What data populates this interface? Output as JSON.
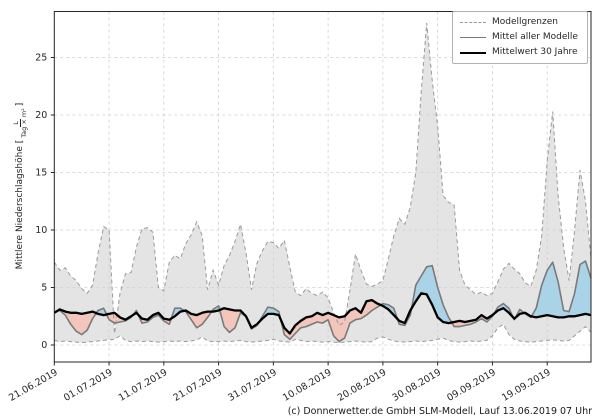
{
  "chart_data": {
    "type": "area",
    "title": "",
    "grid": true,
    "legend_position": "top-right",
    "x": {
      "tick_labels": [
        "21.06.2019",
        "01.07.2019",
        "11.07.2019",
        "21.07.2019",
        "31.07.2019",
        "10.08.2019",
        "20.08.2019",
        "30.08.2019",
        "09.09.2019",
        "19.09.2019"
      ],
      "tick_days": [
        0,
        10,
        20,
        30,
        40,
        50,
        60,
        70,
        80,
        90
      ],
      "total_days": 98
    },
    "y": {
      "label_prefix": "Mittlere Niederschlagshöhe [",
      "unit_numerator": "L",
      "unit_denominator": "Tag × m²",
      "label_suffix": "]",
      "ticks": [
        0,
        5,
        10,
        15,
        20,
        25
      ],
      "lim": [
        -1.5,
        29
      ]
    },
    "legend_items": [
      {
        "label": "Modellgrenzen",
        "line": "dashed-gray"
      },
      {
        "label": "Mittel aller Modelle",
        "line": "solid-gray"
      },
      {
        "label": "Mittelwert 30 Jahre",
        "line": "solid-black"
      }
    ],
    "series": [
      {
        "name": "Modellgrenzen obere Grenze",
        "values": [
          7.2,
          6.5,
          6.7,
          6.0,
          5.6,
          4.9,
          4.5,
          5.2,
          8.0,
          10.3,
          10.0,
          1.0,
          4.5,
          6.2,
          6.3,
          8.5,
          10.1,
          10.2,
          9.8,
          5.0,
          4.7,
          7.2,
          7.8,
          7.5,
          8.8,
          9.6,
          10.7,
          9.5,
          4.8,
          6.5,
          5.2,
          6.9,
          7.8,
          9.0,
          10.5,
          8.0,
          4.8,
          7.1,
          8.2,
          9.0,
          8.9,
          8.4,
          9.1,
          6.8,
          4.6,
          4.3,
          4.9,
          4.5,
          4.3,
          4.6,
          4.1,
          2.8,
          1.7,
          2.0,
          4.8,
          7.9,
          6.5,
          5.3,
          5.1,
          5.3,
          5.6,
          7.5,
          9.5,
          11.0,
          10.5,
          12.0,
          15.0,
          22.0,
          28.0,
          23.0,
          19.0,
          13.0,
          12.4,
          12.2,
          6.5,
          5.2,
          4.8,
          4.4,
          4.6,
          4.3,
          4.5,
          5.5,
          6.6,
          7.1,
          6.6,
          6.2,
          5.4,
          5.1,
          6.5,
          9.5,
          16.0,
          20.3,
          13.0,
          8.5,
          5.6,
          10.0,
          15.2,
          12.5,
          7.5
        ]
      },
      {
        "name": "Modellgrenzen untere Grenze",
        "values": [
          0.4,
          0.3,
          0.35,
          0.3,
          0.25,
          0.2,
          0.25,
          0.3,
          0.35,
          0.4,
          0.45,
          0.5,
          0.8,
          0.4,
          0.3,
          0.35,
          0.3,
          0.35,
          0.3,
          0.25,
          0.3,
          0.35,
          0.3,
          0.35,
          0.3,
          0.35,
          0.45,
          0.7,
          0.35,
          0.3,
          0.3,
          0.35,
          0.3,
          0.35,
          0.4,
          0.3,
          0.25,
          0.3,
          0.35,
          0.4,
          0.5,
          0.35,
          0.3,
          0.25,
          0.5,
          0.4,
          0.3,
          0.35,
          0.3,
          0.25,
          0.3,
          0.25,
          0.2,
          0.25,
          0.3,
          0.35,
          0.3,
          0.25,
          0.3,
          0.6,
          0.7,
          0.5,
          0.35,
          0.3,
          0.25,
          0.3,
          0.35,
          0.3,
          0.35,
          0.4,
          0.5,
          0.6,
          0.4,
          0.3,
          0.25,
          0.3,
          0.35,
          0.3,
          0.35,
          0.4,
          0.8,
          1.5,
          1.8,
          0.9,
          0.5,
          0.35,
          0.3,
          0.25,
          0.3,
          0.35,
          0.4,
          0.45,
          0.4,
          0.35,
          0.4,
          0.8,
          1.2,
          1.6,
          1.1
        ]
      },
      {
        "name": "Mittel aller Modelle",
        "values": [
          2.9,
          3.0,
          2.6,
          1.8,
          1.2,
          0.9,
          1.3,
          2.3,
          3.0,
          3.2,
          2.2,
          1.9,
          2.0,
          2.1,
          2.4,
          3.0,
          1.9,
          2.0,
          2.4,
          2.6,
          2.1,
          1.8,
          3.2,
          3.2,
          2.9,
          2.2,
          1.5,
          1.8,
          2.4,
          3.1,
          3.4,
          1.6,
          1.1,
          1.5,
          2.8,
          2.5,
          1.4,
          1.7,
          2.5,
          3.3,
          3.2,
          2.9,
          0.9,
          0.5,
          1.0,
          1.5,
          1.6,
          1.8,
          2.0,
          1.9,
          2.2,
          0.8,
          0.3,
          0.6,
          1.9,
          2.2,
          2.3,
          2.6,
          3.0,
          3.3,
          3.6,
          3.5,
          3.2,
          1.8,
          1.7,
          2.6,
          5.2,
          6.0,
          6.8,
          6.9,
          5.0,
          3.5,
          2.4,
          1.6,
          1.6,
          1.7,
          1.8,
          2.0,
          2.3,
          2.0,
          2.5,
          3.3,
          3.6,
          3.2,
          2.2,
          3.1,
          2.7,
          2.4,
          3.2,
          5.2,
          6.5,
          7.2,
          5.5,
          3.0,
          2.9,
          4.5,
          7.0,
          7.3,
          5.8
        ]
      },
      {
        "name": "Mittelwert 30 Jahre",
        "values": [
          2.8,
          3.1,
          2.9,
          2.8,
          2.8,
          2.7,
          2.8,
          2.9,
          2.7,
          2.6,
          2.7,
          2.8,
          2.4,
          2.2,
          2.5,
          2.8,
          2.3,
          2.2,
          2.6,
          2.8,
          2.3,
          2.2,
          2.5,
          2.9,
          3.0,
          2.7,
          2.6,
          2.8,
          2.9,
          2.9,
          3.0,
          3.2,
          3.1,
          3.0,
          3.0,
          2.5,
          1.5,
          1.8,
          2.3,
          2.7,
          2.7,
          2.6,
          1.5,
          1.0,
          1.7,
          2.1,
          2.4,
          2.5,
          2.8,
          2.6,
          2.8,
          2.6,
          2.4,
          2.5,
          3.0,
          3.2,
          2.8,
          3.8,
          3.9,
          3.6,
          3.4,
          3.1,
          2.6,
          2.1,
          1.9,
          3.0,
          3.8,
          4.5,
          4.4,
          3.5,
          2.4,
          2.0,
          1.9,
          2.0,
          2.1,
          2.0,
          2.1,
          2.2,
          2.6,
          2.3,
          2.6,
          3.0,
          3.2,
          2.8,
          2.3,
          2.7,
          2.8,
          2.5,
          2.4,
          2.5,
          2.6,
          2.5,
          2.4,
          2.4,
          2.5,
          2.5,
          2.6,
          2.7,
          2.6
        ]
      }
    ],
    "colors": {
      "band_fill": "#e4e4e4",
      "bound_line": "#9a9a9a",
      "model_mean_line": "#7a7a7a",
      "mean30_line": "#000000",
      "above_mean_fill": "#abd3e8",
      "below_mean_fill": "#f2c6ba",
      "grid_line": "#cfcfcf",
      "spine": "#262626",
      "tick_text": "#262626"
    }
  },
  "footer": {
    "credit": "(c) Donnerwetter.de GmbH SLM-Modell, Lauf 13.06.2019 07 Uhr"
  }
}
